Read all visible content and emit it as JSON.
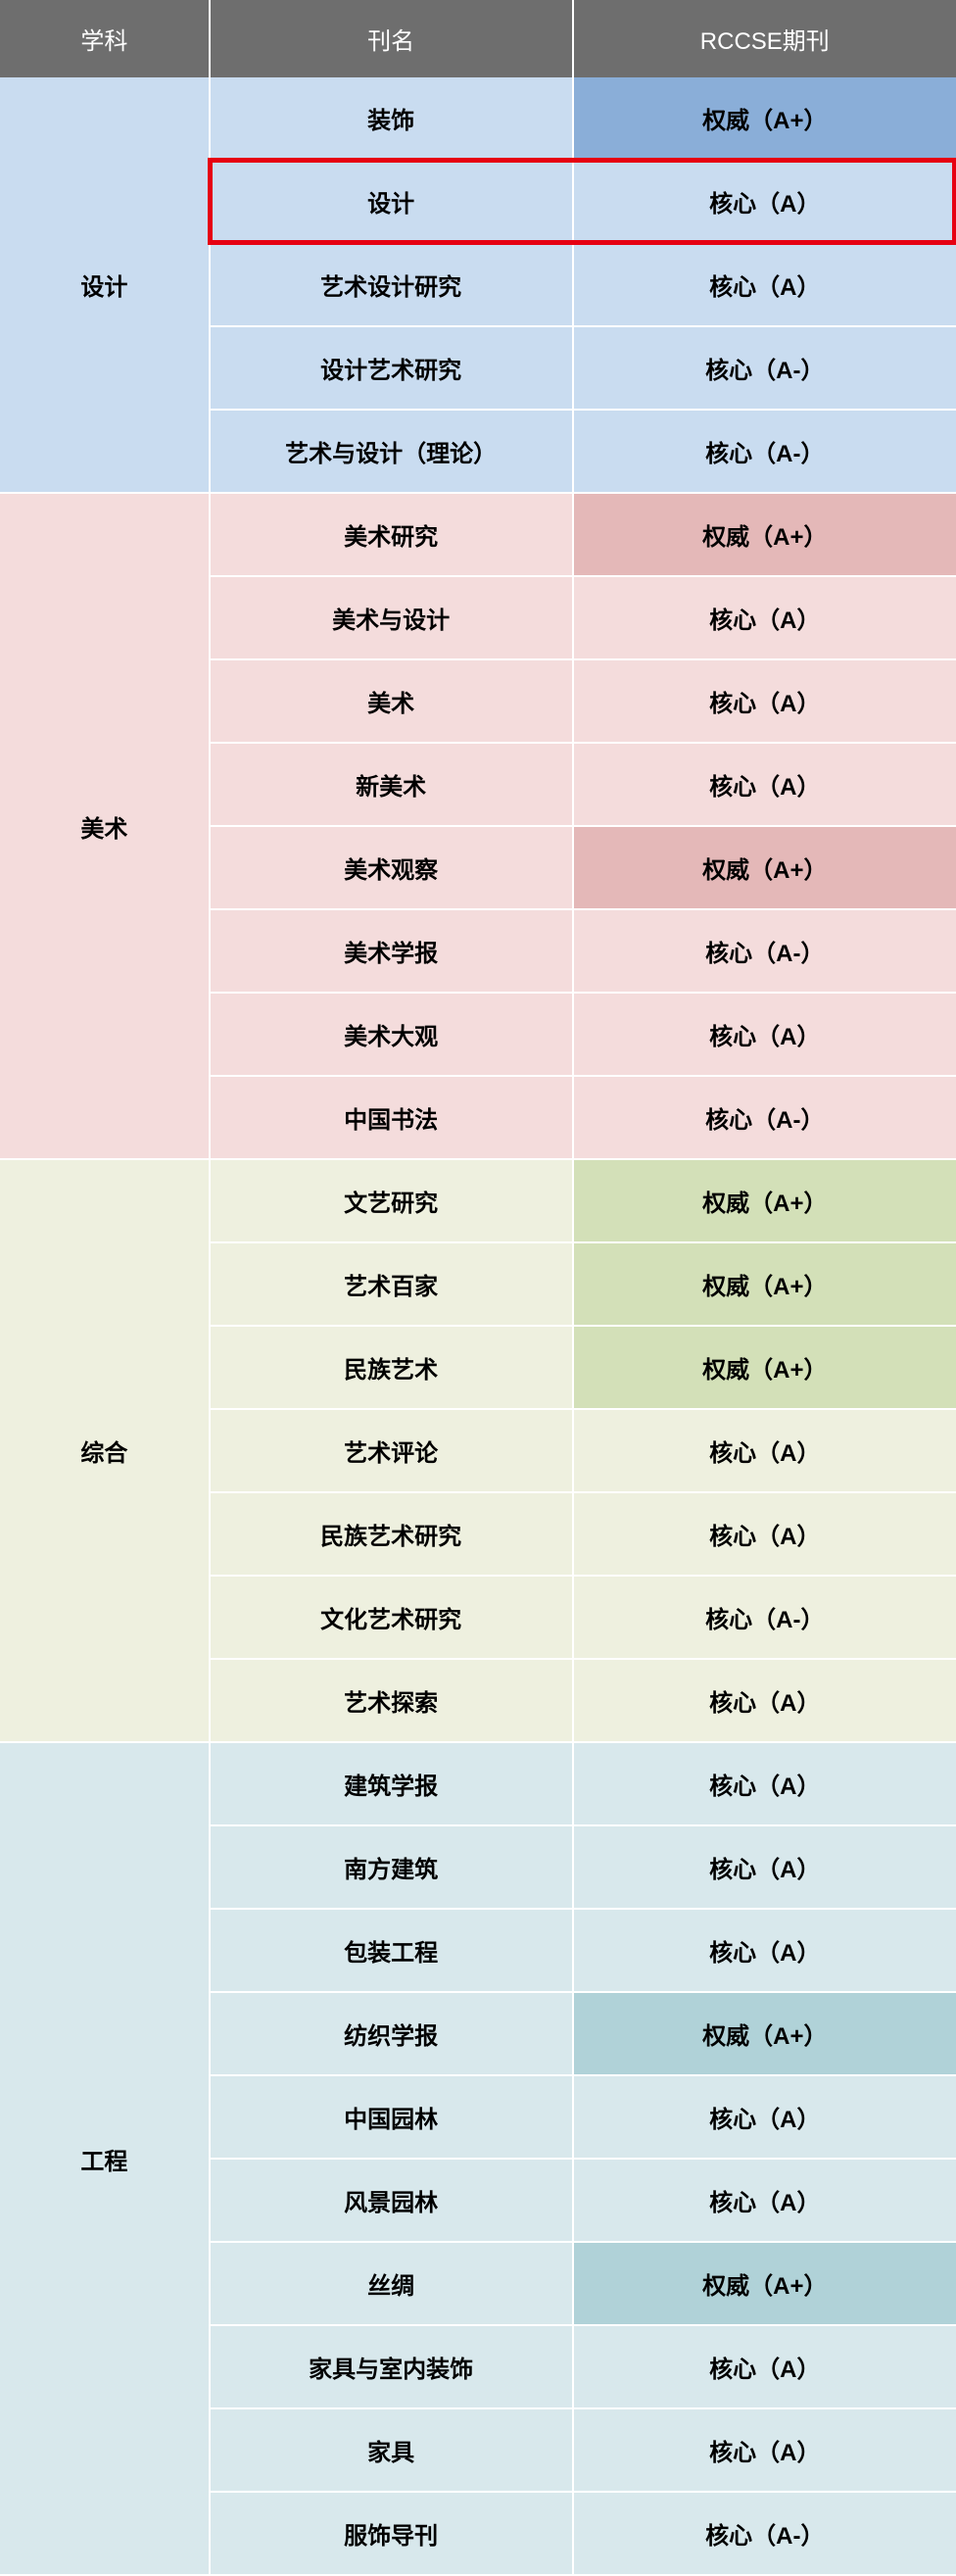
{
  "header": {
    "bg_color": "#6e6e6e",
    "text_color": "#ffffff",
    "columns": [
      "学科",
      "刊名",
      "RCCSE期刊"
    ]
  },
  "highlight": {
    "row_index": 1,
    "border_color": "#e60012"
  },
  "sections": [
    {
      "subject": "设计",
      "subject_bg": "#c9dcf0",
      "row_bg": "#c9dcf0",
      "rows": [
        {
          "journal": "装饰",
          "rating": "权威（A+）",
          "rating_bg": "#8aaed8"
        },
        {
          "journal": "设计",
          "rating": "核心（A）",
          "rating_bg": "#c9dcf0"
        },
        {
          "journal": "艺术设计研究",
          "rating": "核心（A）",
          "rating_bg": "#c9dcf0"
        },
        {
          "journal": "设计艺术研究",
          "rating": "核心（A-）",
          "rating_bg": "#c9dcf0"
        },
        {
          "journal": "艺术与设计（理论）",
          "rating": "核心（A-）",
          "rating_bg": "#c9dcf0"
        }
      ]
    },
    {
      "subject": "美术",
      "subject_bg": "#f4dcdc",
      "row_bg": "#f4dcdc",
      "rows": [
        {
          "journal": "美术研究",
          "rating": "权威（A+）",
          "rating_bg": "#e4b8b8"
        },
        {
          "journal": "美术与设计",
          "rating": "核心（A）",
          "rating_bg": "#f4dcdc"
        },
        {
          "journal": "美术",
          "rating": "核心（A）",
          "rating_bg": "#f4dcdc"
        },
        {
          "journal": "新美术",
          "rating": "核心（A）",
          "rating_bg": "#f4dcdc"
        },
        {
          "journal": "美术观察",
          "rating": "权威（A+）",
          "rating_bg": "#e4b8b8"
        },
        {
          "journal": "美术学报",
          "rating": "核心（A-）",
          "rating_bg": "#f4dcdc"
        },
        {
          "journal": "美术大观",
          "rating": "核心（A）",
          "rating_bg": "#f4dcdc"
        },
        {
          "journal": "中国书法",
          "rating": "核心（A-）",
          "rating_bg": "#f4dcdc"
        }
      ]
    },
    {
      "subject": "综合",
      "subject_bg": "#eef0df",
      "row_bg": "#eef0df",
      "rows": [
        {
          "journal": "文艺研究",
          "rating": "权威（A+）",
          "rating_bg": "#d3e0b8"
        },
        {
          "journal": "艺术百家",
          "rating": "权威（A+）",
          "rating_bg": "#d3e0b8"
        },
        {
          "journal": "民族艺术",
          "rating": "权威（A+）",
          "rating_bg": "#d3e0b8"
        },
        {
          "journal": "艺术评论",
          "rating": "核心（A）",
          "rating_bg": "#eef0df"
        },
        {
          "journal": "民族艺术研究",
          "rating": "核心（A）",
          "rating_bg": "#eef0df"
        },
        {
          "journal": "文化艺术研究",
          "rating": "核心（A-）",
          "rating_bg": "#eef0df"
        },
        {
          "journal": "艺术探索",
          "rating": "核心（A）",
          "rating_bg": "#eef0df"
        }
      ]
    },
    {
      "subject": "工程",
      "subject_bg": "#d8e8ec",
      "row_bg": "#d8e8ec",
      "rows": [
        {
          "journal": "建筑学报",
          "rating": "核心（A）",
          "rating_bg": "#d8e8ec"
        },
        {
          "journal": "南方建筑",
          "rating": "核心（A）",
          "rating_bg": "#d8e8ec"
        },
        {
          "journal": "包装工程",
          "rating": "核心（A）",
          "rating_bg": "#d8e8ec"
        },
        {
          "journal": "纺织学报",
          "rating": "权威（A+）",
          "rating_bg": "#b0d2d8"
        },
        {
          "journal": "中国园林",
          "rating": "核心（A）",
          "rating_bg": "#d8e8ec"
        },
        {
          "journal": "风景园林",
          "rating": "核心（A）",
          "rating_bg": "#d8e8ec"
        },
        {
          "journal": "丝绸",
          "rating": "权威（A+）",
          "rating_bg": "#b0d2d8"
        },
        {
          "journal": "家具与室内装饰",
          "rating": "核心（A）",
          "rating_bg": "#d8e8ec"
        },
        {
          "journal": "家具",
          "rating": "核心（A）",
          "rating_bg": "#d8e8ec"
        },
        {
          "journal": "服饰导刊",
          "rating": "核心（A-）",
          "rating_bg": "#d8e8ec"
        }
      ]
    }
  ]
}
